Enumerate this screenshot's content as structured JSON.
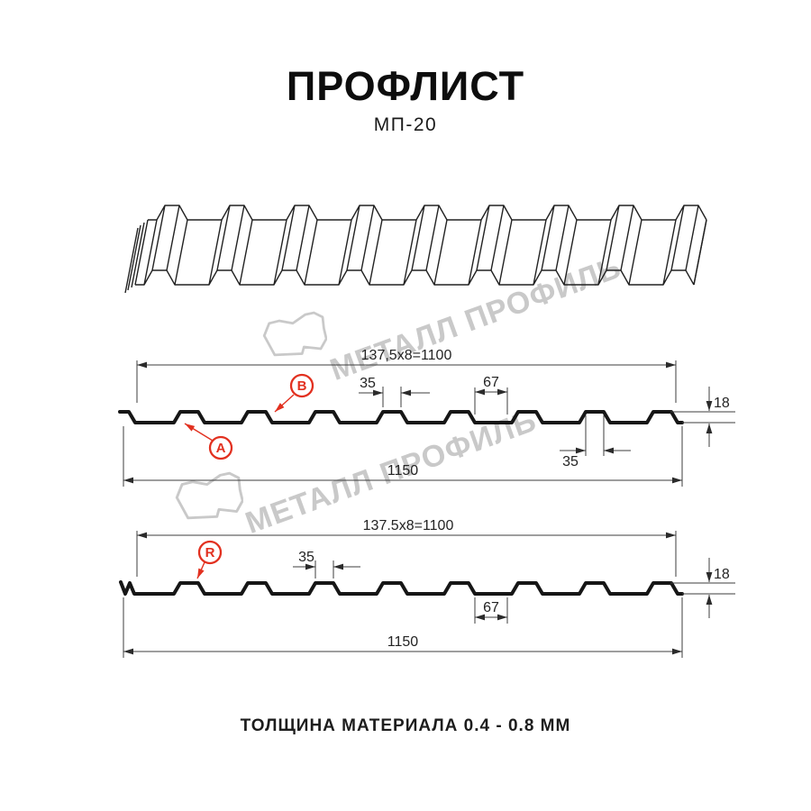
{
  "header": {
    "title": "ПРОФЛИСТ",
    "subtitle": "МП-20"
  },
  "watermark": {
    "text": "МЕТАЛЛ ПРОФИЛЬ"
  },
  "sections": {
    "a": {
      "top_width": "137,5x8=1100",
      "rib_top_width": "35",
      "valley_width": "67",
      "profile_height": "18",
      "rib_top_width_bottom": "35",
      "total_width": "1150",
      "label_a": "A",
      "label_b": "B"
    },
    "r": {
      "top_width": "137.5x8=1100",
      "rib_top_width": "35",
      "valley_width": "67",
      "profile_height": "18",
      "total_width": "1150",
      "label_r": "R"
    }
  },
  "footer": {
    "text": "ТОЛЩИНА МАТЕРИАЛА 0.4 - 0.8 ММ"
  },
  "colors": {
    "accent_red": "#e2301f",
    "line": "#161616",
    "watermark": "#c9c9c9"
  }
}
